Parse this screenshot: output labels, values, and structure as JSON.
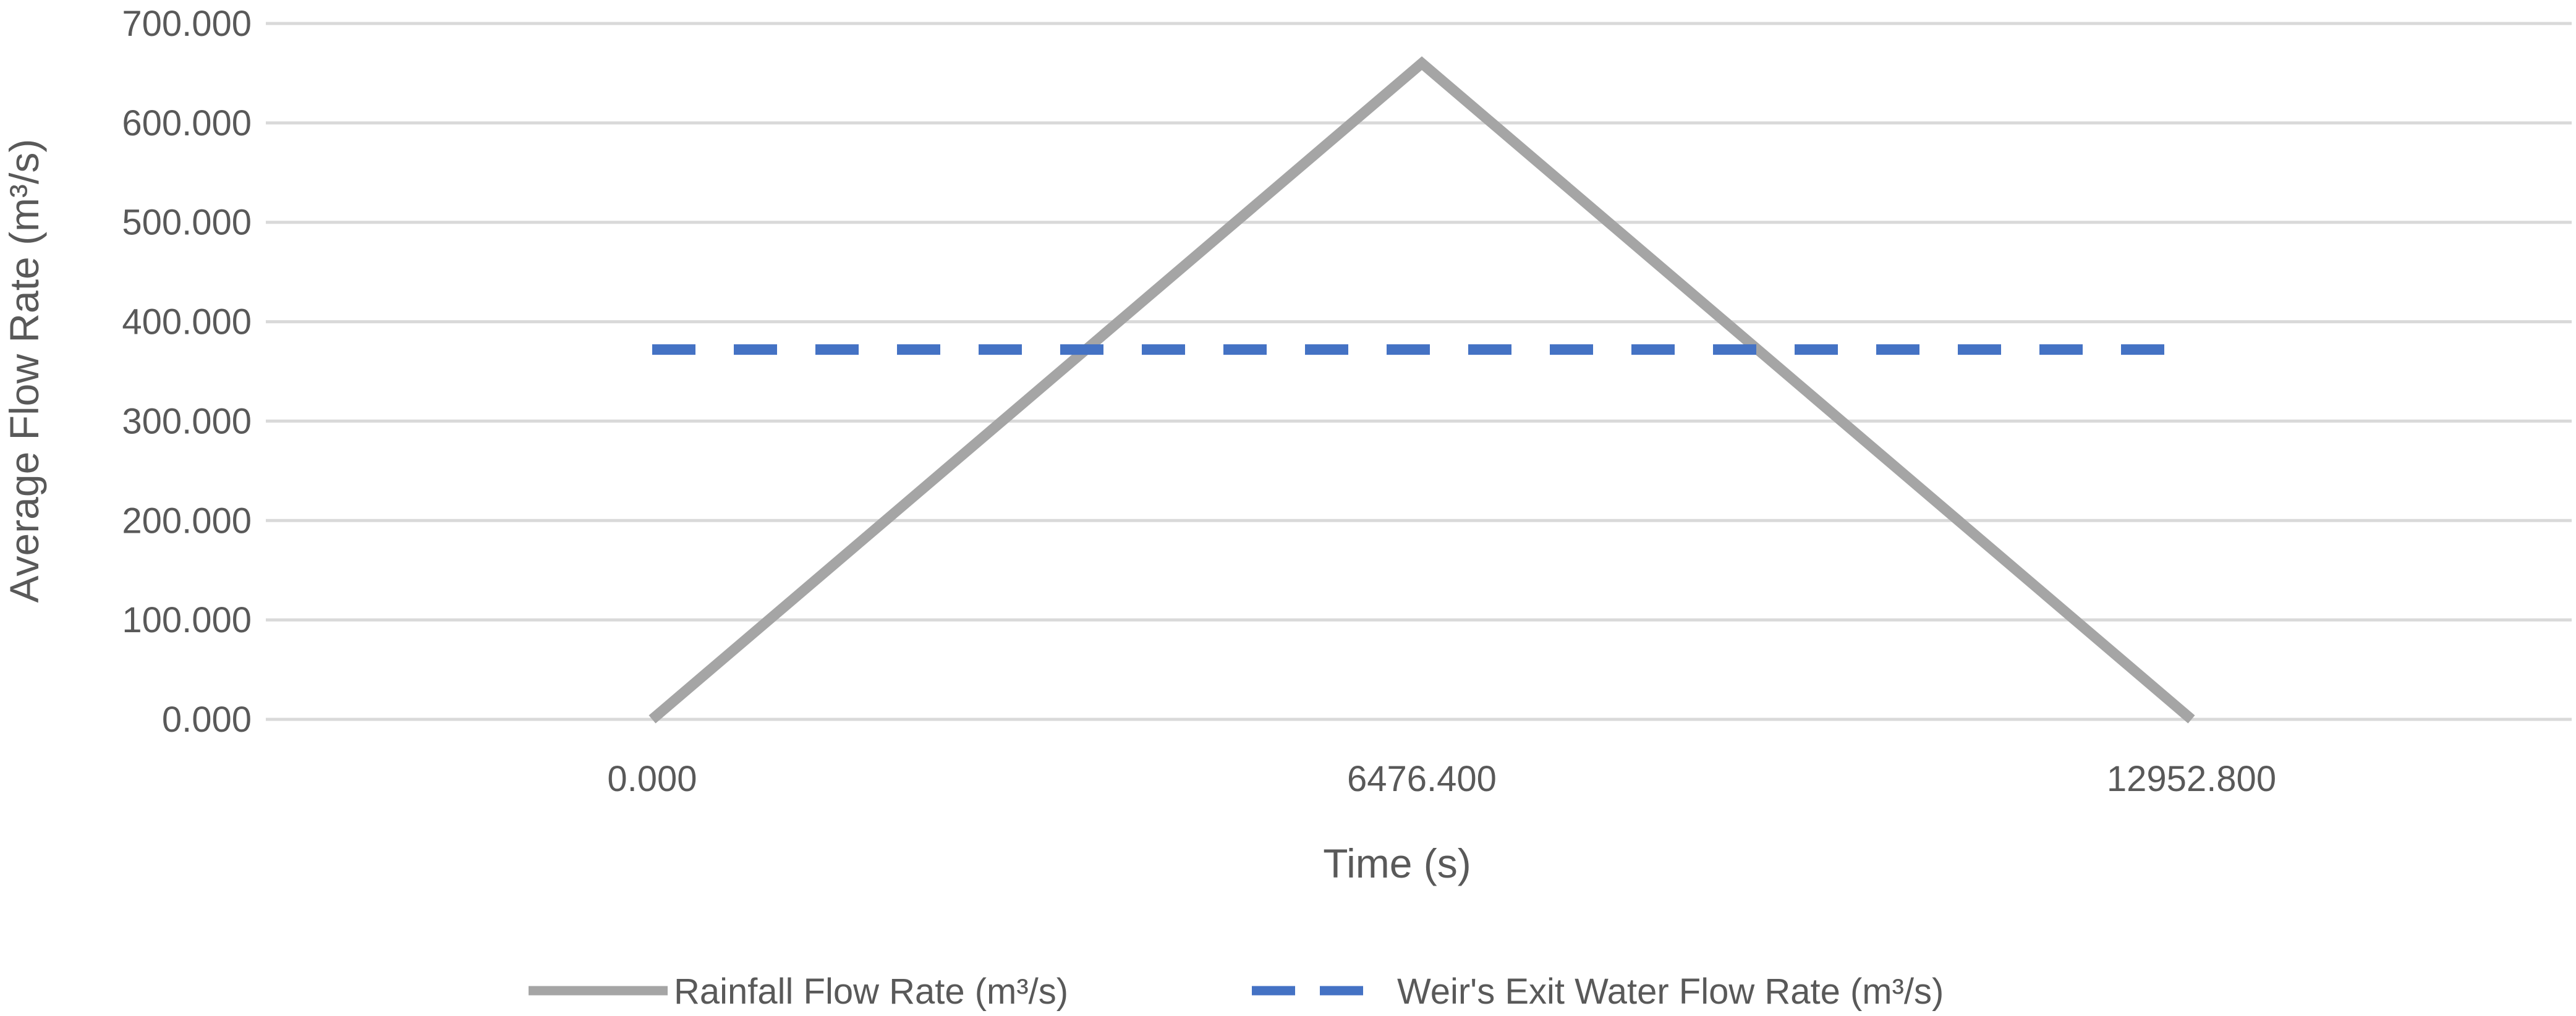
{
  "chart_data": {
    "type": "line",
    "title": "",
    "xlabel": "Time (s)",
    "ylabel": "Average Flow Rate  (m³/s)",
    "ylim": [
      0,
      700
    ],
    "y_ticks": [
      "0.000",
      "100.000",
      "200.000",
      "300.000",
      "400.000",
      "500.000",
      "600.000",
      "700.000"
    ],
    "x_ticks": [
      "0.000",
      "6476.400",
      "12952.800"
    ],
    "grid": true,
    "legend_position": "bottom",
    "series": [
      {
        "name": "Rainfall Flow Rate (m³/s)",
        "style": "solid",
        "color": "#A5A5A5",
        "points": [
          [
            0,
            0
          ],
          [
            6476.4,
            660
          ],
          [
            12952.8,
            0
          ]
        ]
      },
      {
        "name": "Weir's Exit Water Flow Rate (m³/s)",
        "style": "dashed",
        "color": "#4472C4",
        "points": [
          [
            0,
            372
          ],
          [
            12952.8,
            372
          ]
        ]
      }
    ]
  },
  "colors": {
    "grid": "#D9D9D9",
    "text": "#595959"
  }
}
